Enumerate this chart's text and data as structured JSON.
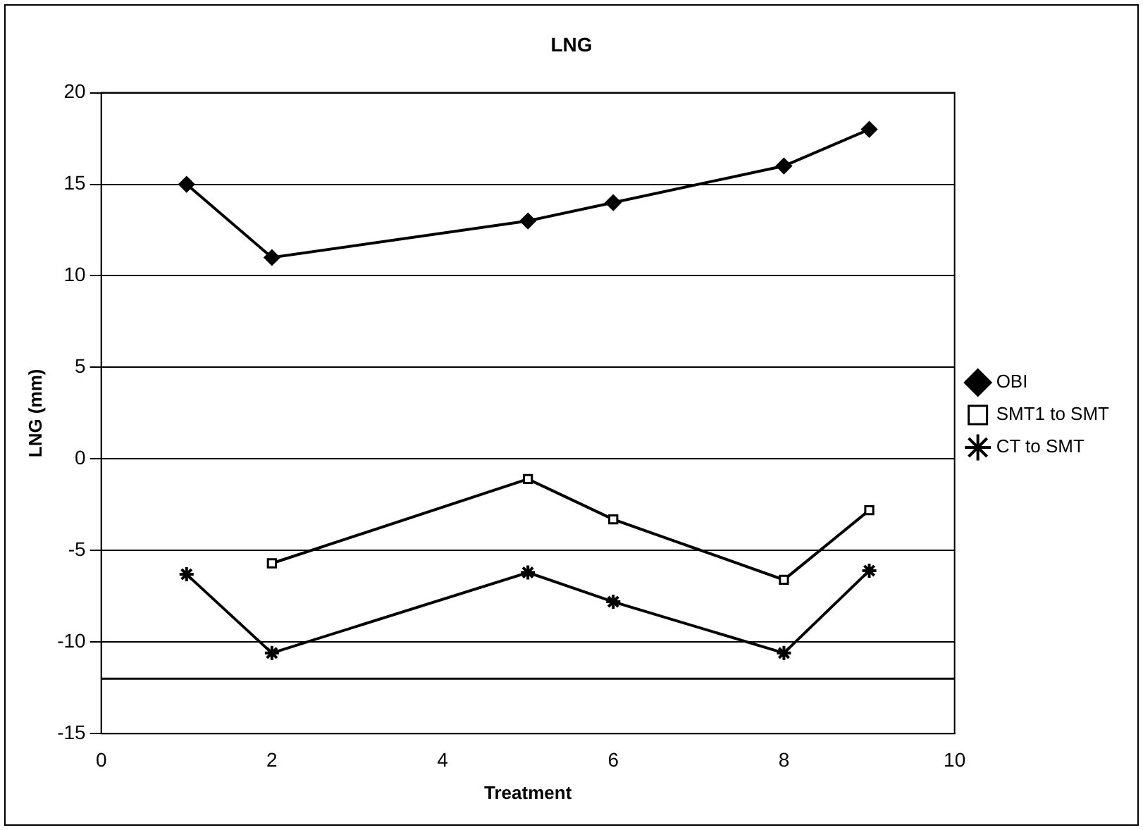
{
  "chart_data": {
    "type": "line",
    "title": "LNG",
    "xlabel": "Treatment",
    "ylabel": "LNG (mm)",
    "xlim": [
      0,
      10
    ],
    "xticks": [
      0,
      2,
      4,
      6,
      8,
      10
    ],
    "ylim": [
      -15,
      20
    ],
    "yticks": [
      -15,
      -10,
      -5,
      0,
      5,
      10,
      15,
      20
    ],
    "grid": "y",
    "legend": "right",
    "ref_lines": [
      {
        "axis": "y",
        "value": -12,
        "color": "#000000"
      }
    ],
    "series": [
      {
        "name": "OBI",
        "color": "#000000",
        "marker": "diamond",
        "x": [
          1,
          2,
          5,
          6,
          8,
          9
        ],
        "values": [
          15,
          11,
          13,
          14,
          16,
          18
        ]
      },
      {
        "name": "SMT1 to SMT",
        "color": "#000000",
        "marker": "square",
        "x": [
          2,
          5,
          6,
          8,
          9
        ],
        "values": [
          -5.7,
          -1.1,
          -3.3,
          -6.6,
          -2.8
        ]
      },
      {
        "name": "CT to SMT",
        "color": "#000000",
        "marker": "cross",
        "x": [
          1,
          2,
          5,
          6,
          8,
          9
        ],
        "values": [
          -6.3,
          -10.6,
          -6.2,
          -7.8,
          -10.6,
          -6.1
        ]
      }
    ]
  }
}
